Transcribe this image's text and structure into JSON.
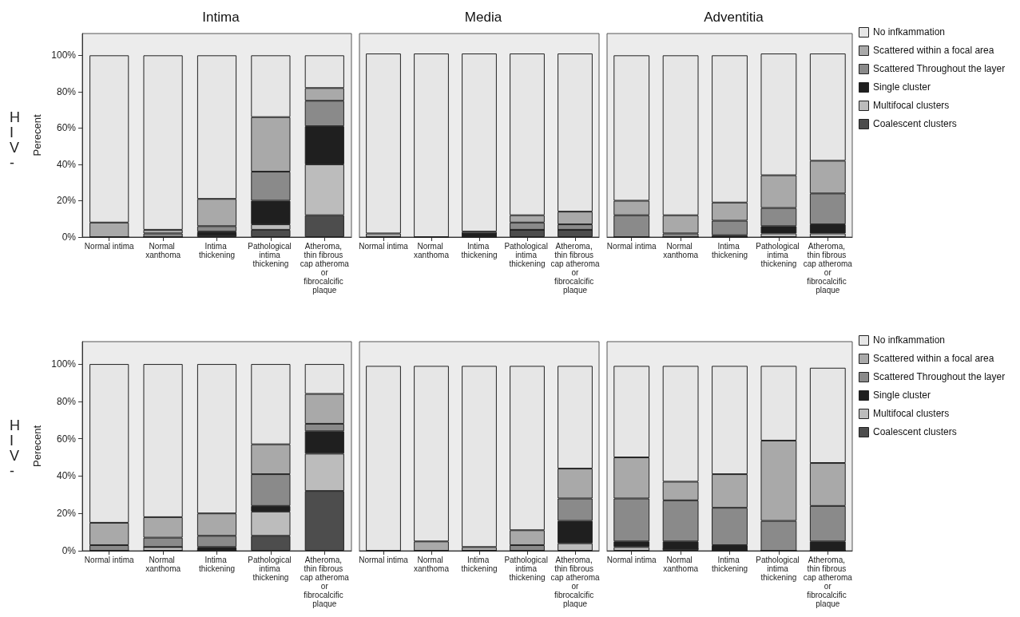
{
  "chart_data": [
    {
      "type": "bar",
      "stacked": true,
      "title": "Intima",
      "ylabel": "Perecent",
      "annotations": [
        "HIV-"
      ],
      "categories": [
        "Normal intima",
        "Normal xanthoma",
        "Intima thickening",
        "Pathological intima thickening",
        "Atheroma, thin fibrous cap atheroma or fibrocalcific plaque"
      ],
      "ylim": [
        0,
        112
      ],
      "yticks": [
        {
          "value": 0,
          "label": "0%"
        },
        {
          "value": 20,
          "label": "20%"
        },
        {
          "value": 40,
          "label": "40%"
        },
        {
          "value": 60,
          "label": "60%"
        },
        {
          "value": 80,
          "label": "80%"
        },
        {
          "value": 100,
          "label": "100%"
        }
      ],
      "grid": false,
      "legend": false,
      "series": [
        {
          "color": "#4d4d4d",
          "values": [
            0,
            0,
            1,
            4,
            12
          ]
        },
        {
          "color": "#bcbcbc",
          "values": [
            0,
            0,
            0,
            3,
            28
          ]
        },
        {
          "color": "#1f1f1f",
          "values": [
            0,
            0,
            2,
            13,
            21
          ]
        },
        {
          "color": "#8a8a8a",
          "values": [
            0,
            2,
            3,
            16,
            14
          ]
        },
        {
          "color": "#a9a9a9",
          "values": [
            8,
            2,
            15,
            30,
            7
          ]
        },
        {
          "color": "#e6e6e6",
          "values": [
            92,
            96,
            79,
            34,
            18
          ]
        }
      ]
    },
    {
      "type": "bar",
      "stacked": true,
      "title": "Media",
      "tick_labels": "x",
      "categories": [
        "Normal intima",
        "Normal xanthoma",
        "Intima thickening",
        "Pathological intima thickening",
        "Atheroma, thin fibrous cap atheroma or fibrocalcific plaque"
      ],
      "ylim": [
        0,
        112
      ],
      "grid": false,
      "legend": false,
      "series": [
        {
          "color": "#4d4d4d",
          "values": [
            0,
            0,
            0,
            4,
            4
          ]
        },
        {
          "color": "#bcbcbc",
          "values": [
            0,
            0,
            0,
            0,
            0
          ]
        },
        {
          "color": "#1f1f1f",
          "values": [
            0,
            0,
            2,
            0,
            0
          ]
        },
        {
          "color": "#8a8a8a",
          "values": [
            0,
            0,
            0,
            4,
            3
          ]
        },
        {
          "color": "#a9a9a9",
          "values": [
            2,
            0,
            1,
            4,
            7
          ]
        },
        {
          "color": "#e6e6e6",
          "values": [
            99,
            101,
            98,
            89,
            87
          ]
        }
      ]
    },
    {
      "type": "bar",
      "stacked": true,
      "title": "Adventitia",
      "tick_labels": "x",
      "categories": [
        "Normal intima",
        "Normal xanthoma",
        "Intima thickening",
        "Pathological intima thickening",
        "Atheroma, thin fibrous cap atheroma or fibrocalcific plaque"
      ],
      "ylim": [
        0,
        112
      ],
      "grid": false,
      "legend": "right",
      "series": [
        {
          "name": "Coalescent clusters",
          "color": "#4d4d4d",
          "values": [
            0,
            0,
            0,
            0,
            0
          ]
        },
        {
          "name": "Multifocal clusters",
          "color": "#bcbcbc",
          "values": [
            0,
            0,
            0,
            2,
            2
          ]
        },
        {
          "name": "Single cluster",
          "color": "#1f1f1f",
          "values": [
            0,
            0,
            1,
            4,
            5
          ]
        },
        {
          "name": "Scattered Throughout the layer",
          "color": "#8a8a8a",
          "values": [
            12,
            2,
            8,
            10,
            17
          ]
        },
        {
          "name": "Scattered within a focal area",
          "color": "#a9a9a9",
          "values": [
            8,
            10,
            10,
            18,
            18
          ]
        },
        {
          "name": "No infkammation",
          "color": "#e6e6e6",
          "values": [
            80,
            88,
            81,
            67,
            59
          ]
        }
      ]
    },
    {
      "type": "bar",
      "stacked": true,
      "ylabel": "Perecent",
      "annotations": [
        "HIV-"
      ],
      "categories": [
        "Normal intima",
        "Normal xanthoma",
        "Intima thickening",
        "Pathological intima thickening",
        "Atheroma, thin fibrous cap atheroma or fibrocalcific plaque"
      ],
      "ylim": [
        0,
        112
      ],
      "yticks": [
        {
          "value": 0,
          "label": "0%"
        },
        {
          "value": 20,
          "label": "20%"
        },
        {
          "value": 40,
          "label": "40%"
        },
        {
          "value": 60,
          "label": "60%"
        },
        {
          "value": 80,
          "label": "80%"
        },
        {
          "value": 100,
          "label": "100%"
        }
      ],
      "grid": false,
      "legend": false,
      "series": [
        {
          "color": "#4d4d4d",
          "values": [
            0,
            0,
            0,
            8,
            32
          ]
        },
        {
          "color": "#bcbcbc",
          "values": [
            0,
            2,
            0,
            13,
            20
          ]
        },
        {
          "color": "#1f1f1f",
          "values": [
            0,
            0,
            2,
            3,
            12
          ]
        },
        {
          "color": "#8a8a8a",
          "values": [
            3,
            5,
            6,
            17,
            4
          ]
        },
        {
          "color": "#a9a9a9",
          "values": [
            12,
            11,
            12,
            16,
            16
          ]
        },
        {
          "color": "#e6e6e6",
          "values": [
            85,
            82,
            80,
            43,
            16
          ]
        }
      ]
    },
    {
      "type": "bar",
      "stacked": true,
      "tick_labels": "x",
      "categories": [
        "Normal intima",
        "Normal xanthoma",
        "Intima thickening",
        "Pathological intima thickening",
        "Atheroma, thin fibrous cap atheroma or fibrocalcific plaque"
      ],
      "ylim": [
        0,
        112
      ],
      "grid": false,
      "legend": false,
      "series": [
        {
          "color": "#4d4d4d",
          "values": [
            0,
            0,
            0,
            0,
            0
          ]
        },
        {
          "color": "#bcbcbc",
          "values": [
            0,
            0,
            0,
            0,
            4
          ]
        },
        {
          "color": "#1f1f1f",
          "values": [
            0,
            0,
            0,
            0,
            12
          ]
        },
        {
          "color": "#8a8a8a",
          "values": [
            0,
            0,
            0,
            3,
            12
          ]
        },
        {
          "color": "#a9a9a9",
          "values": [
            0,
            5,
            2,
            8,
            16
          ]
        },
        {
          "color": "#e6e6e6",
          "values": [
            99,
            94,
            97,
            88,
            55
          ]
        }
      ]
    },
    {
      "type": "bar",
      "stacked": true,
      "tick_labels": "x",
      "categories": [
        "Normal intima",
        "Normal xanthoma",
        "Intima thickening",
        "Pathological intima thickening",
        "Atheroma, thin fibrous cap atheroma or fibrocalcific plaque"
      ],
      "ylim": [
        0,
        112
      ],
      "grid": false,
      "legend": "right",
      "series": [
        {
          "name": "Coalescent clusters",
          "color": "#4d4d4d",
          "values": [
            0,
            1,
            0,
            0,
            0
          ]
        },
        {
          "name": "Multifocal clusters",
          "color": "#bcbcbc",
          "values": [
            2,
            0,
            0,
            0,
            0
          ]
        },
        {
          "name": "Single cluster",
          "color": "#1f1f1f",
          "values": [
            3,
            4,
            3,
            0,
            5
          ]
        },
        {
          "name": "Scattered Throughout the layer",
          "color": "#8a8a8a",
          "values": [
            23,
            22,
            20,
            16,
            19
          ]
        },
        {
          "name": "Scattered within a focal area",
          "color": "#a9a9a9",
          "values": [
            22,
            10,
            18,
            43,
            23
          ]
        },
        {
          "name": "No infkammation",
          "color": "#e6e6e6",
          "values": [
            49,
            62,
            58,
            40,
            51
          ]
        }
      ]
    }
  ]
}
